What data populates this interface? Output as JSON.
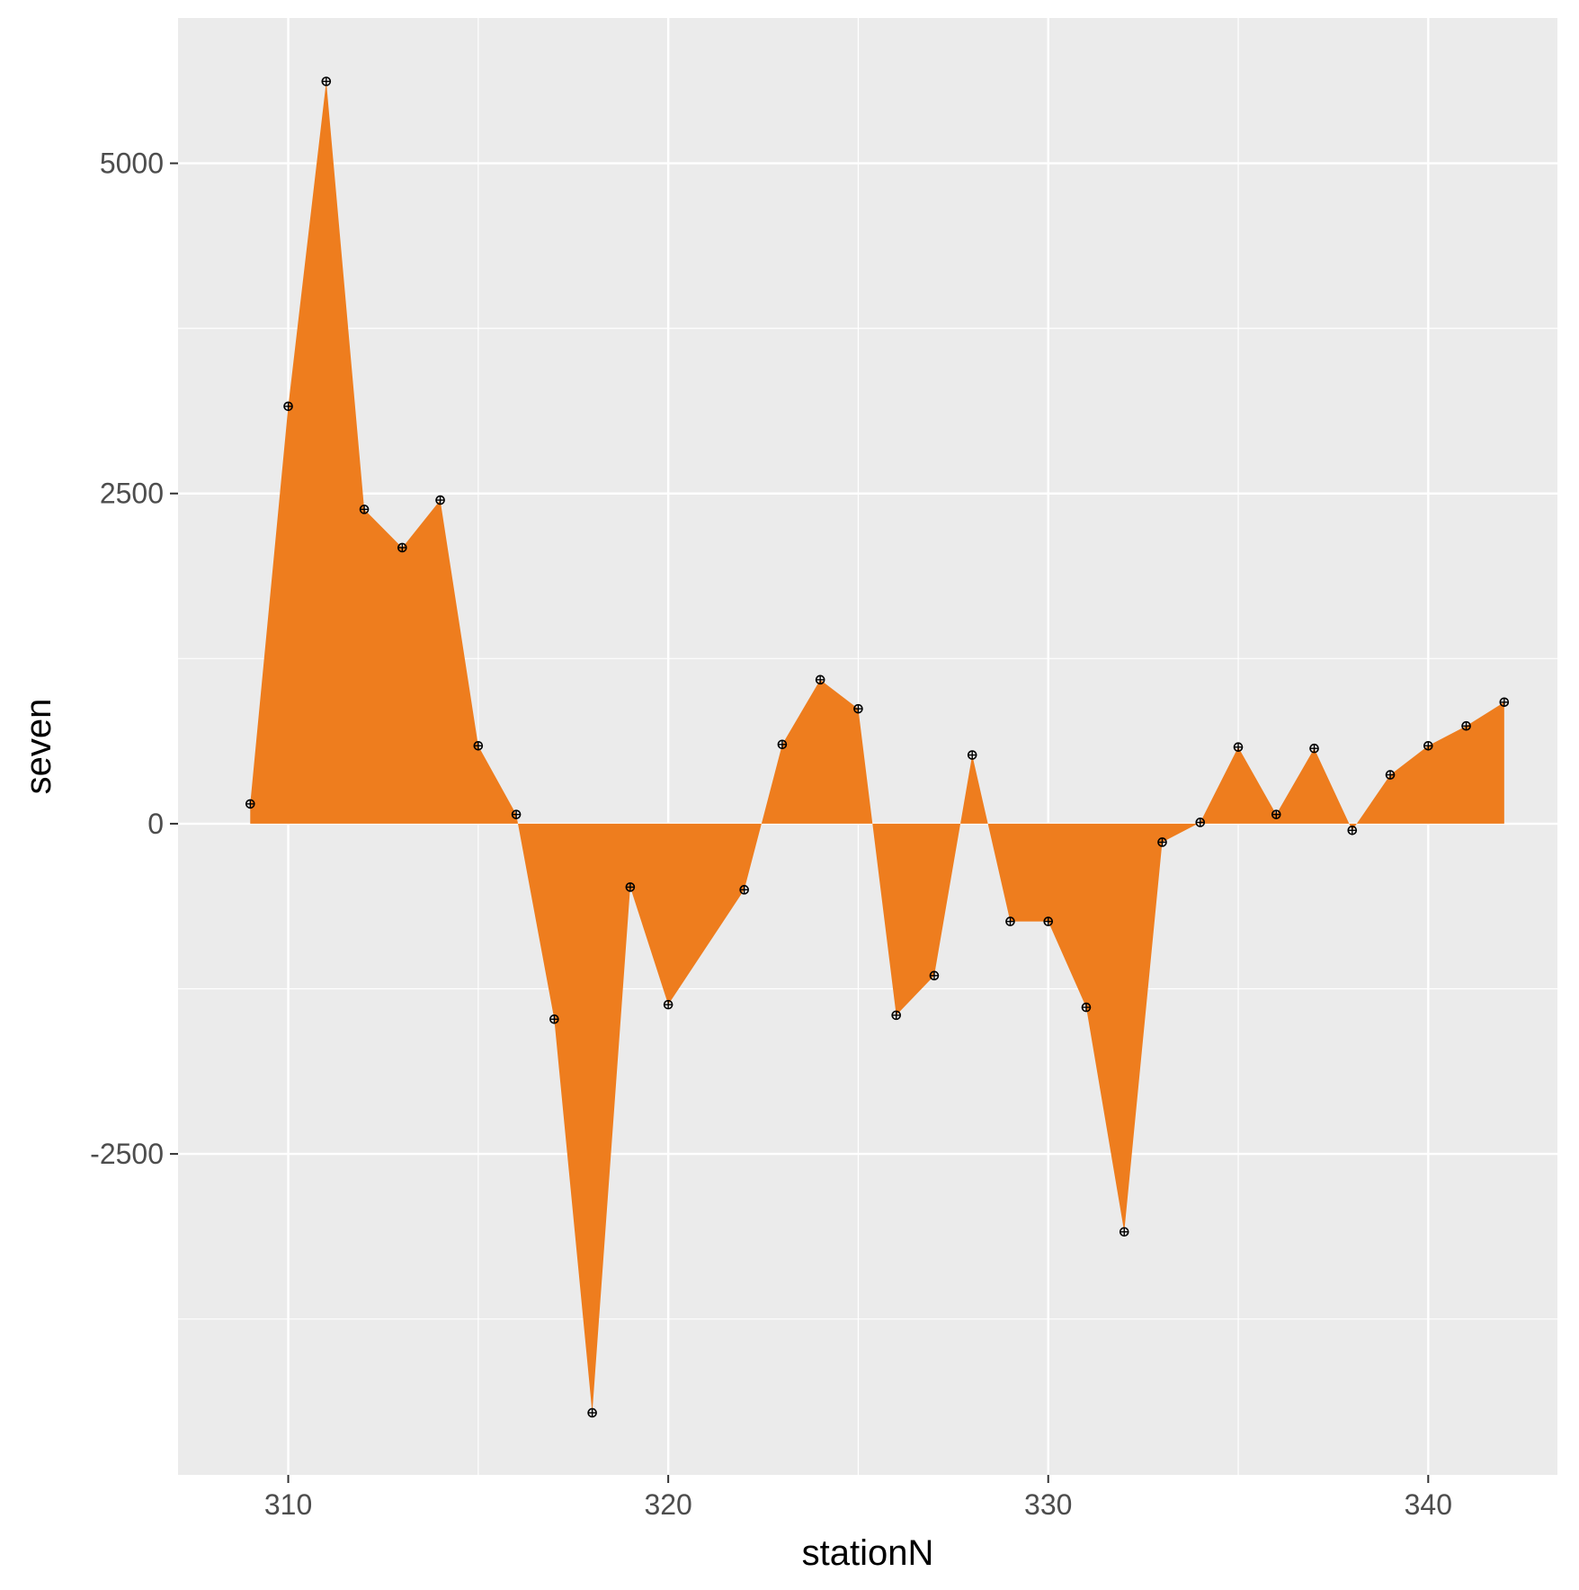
{
  "chart_data": {
    "type": "area",
    "xlabel": "stationN",
    "ylabel": "seven",
    "xlim": [
      307.1,
      343.4
    ],
    "ylim": [
      -4930,
      6100
    ],
    "xticks": [
      310,
      320,
      330,
      340
    ],
    "yticks": [
      -2500,
      0,
      2500,
      5000
    ],
    "x_minor_breaks": [
      315,
      325,
      335
    ],
    "y_minor_breaks": [
      -3750,
      -1250,
      1250,
      3750
    ],
    "grid": true,
    "legend": "none",
    "colors": {
      "fill": "#EE7D1E",
      "panel": "#EBEBEB",
      "grid": "#FFFFFF",
      "point_stroke": "#000000"
    },
    "series": [
      {
        "x": [
          309,
          310,
          311,
          312,
          313,
          314,
          315,
          316,
          317,
          318,
          319,
          320,
          322,
          323,
          324,
          325,
          326,
          327,
          328,
          329,
          330,
          331,
          332,
          333,
          334,
          335,
          336,
          337,
          338,
          339,
          340,
          341,
          342
        ],
        "values": [
          150,
          3160,
          5620,
          2380,
          2090,
          2450,
          590,
          70,
          -1480,
          -4460,
          -480,
          -1370,
          -500,
          600,
          1090,
          870,
          -1450,
          -1150,
          520,
          -740,
          -740,
          -1390,
          -3090,
          -140,
          10,
          580,
          70,
          570,
          -50,
          370,
          590,
          740,
          920
        ]
      }
    ]
  }
}
